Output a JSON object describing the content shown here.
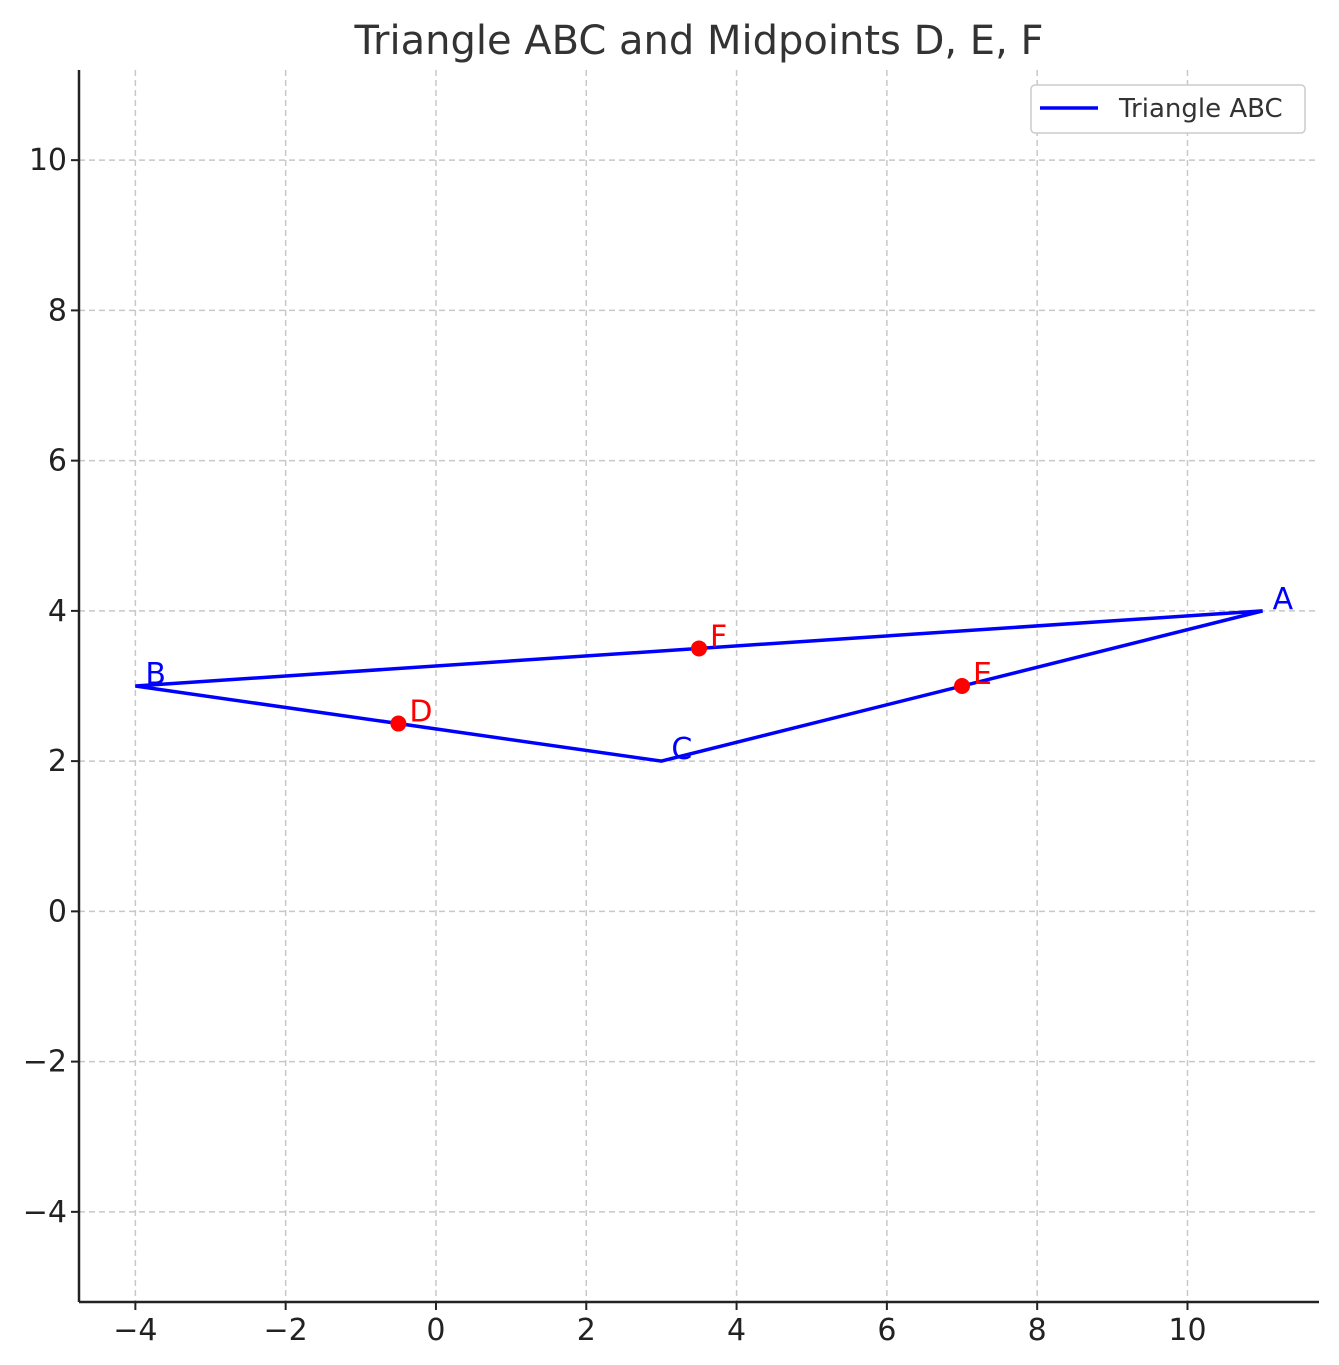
{
  "chart_data": {
    "type": "line",
    "title": "Triangle ABC and Midpoints D, E, F",
    "xlabel": "",
    "ylabel": "",
    "xlim": [
      -4.75,
      11.75
    ],
    "ylim": [
      -5.2,
      11.2
    ],
    "xticks": [
      -4,
      -2,
      0,
      2,
      4,
      6,
      8,
      10
    ],
    "xtick_labels": [
      "−4",
      "−2",
      "0",
      "2",
      "4",
      "6",
      "8",
      "10"
    ],
    "yticks": [
      -4,
      -2,
      0,
      2,
      4,
      6,
      8,
      10
    ],
    "ytick_labels": [
      "−4",
      "−2",
      "0",
      "2",
      "4",
      "6",
      "8",
      "10"
    ],
    "grid": true,
    "legend": {
      "placement": "top-right",
      "entries": [
        "Triangle ABC"
      ]
    },
    "series": [
      {
        "name": "Triangle ABC",
        "color": "#0000ff",
        "points": [
          {
            "label": "A",
            "x": 11,
            "y": 4
          },
          {
            "label": "B",
            "x": -4,
            "y": 3
          },
          {
            "label": "C",
            "x": 3,
            "y": 2
          },
          {
            "label": "A",
            "x": 11,
            "y": 4
          }
        ]
      }
    ],
    "vertices": [
      {
        "label": "A",
        "x": 11,
        "y": 4
      },
      {
        "label": "B",
        "x": -4,
        "y": 3
      },
      {
        "label": "C",
        "x": 3,
        "y": 2
      }
    ],
    "midpoints": {
      "color": "#ff0000",
      "points": [
        {
          "label": "D",
          "x": -0.5,
          "y": 2.5
        },
        {
          "label": "E",
          "x": 7,
          "y": 3
        },
        {
          "label": "F",
          "x": 3.5,
          "y": 3.5
        }
      ]
    }
  }
}
